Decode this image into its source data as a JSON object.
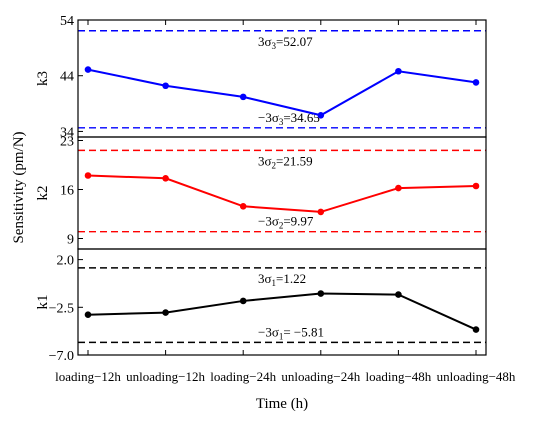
{
  "chart_data": {
    "type": "line",
    "figure": {
      "xlabel": "Time (h)",
      "ylabel": "Sensitivity (pm/N)",
      "categories": [
        "loading−12h",
        "unloading−12h",
        "loading−24h",
        "unloading−24h",
        "loading−48h",
        "unloading−48h"
      ]
    },
    "panels": [
      {
        "ylabel": "k3",
        "ylim": [
          33,
          54
        ],
        "yticks": [
          34,
          44,
          54
        ],
        "series": [
          {
            "color": "#0000ff",
            "values": [
              45.1,
              42.2,
              40.2,
              36.9,
              44.8,
              42.8
            ]
          }
        ],
        "thresholds": [
          {
            "value": 52.07,
            "label_main": "3σ",
            "label_sub": "3",
            "label_value": "=52.07"
          },
          {
            "value": 34.65,
            "label_main": "−3σ",
            "label_sub": "3",
            "label_value": "=34.65"
          }
        ],
        "threshold_color": "#0000ff"
      },
      {
        "ylabel": "k2",
        "ylim": [
          7.5,
          23.5
        ],
        "yticks": [
          9,
          16,
          23
        ],
        "series": [
          {
            "color": "#ff0000",
            "values": [
              18.0,
              17.6,
              13.6,
              12.8,
              16.2,
              16.5
            ]
          }
        ],
        "thresholds": [
          {
            "value": 21.59,
            "label_main": "3σ",
            "label_sub": "2",
            "label_value": "=21.59"
          },
          {
            "value": 9.97,
            "label_main": "−3σ",
            "label_sub": "2",
            "label_value": "=9.97"
          }
        ],
        "threshold_color": "#ff0000"
      },
      {
        "ylabel": "k1",
        "ylim": [
          -7.0,
          3.0
        ],
        "yticks": [
          2.0,
          -2.5,
          -7.0
        ],
        "ytick_labels": [
          "2.0",
          "−2.5",
          "−7.0"
        ],
        "series": [
          {
            "color": "#000000",
            "values": [
              -3.2,
              -3.0,
              -1.9,
              -1.2,
              -1.3,
              -4.6
            ]
          }
        ],
        "thresholds": [
          {
            "value": 1.22,
            "label_main": "3σ",
            "label_sub": "1",
            "label_value": "=1.22"
          },
          {
            "value": -5.81,
            "label_main": "−3σ",
            "label_sub": "1",
            "label_value": "= −5.81"
          }
        ],
        "threshold_color": "#000000"
      }
    ]
  }
}
